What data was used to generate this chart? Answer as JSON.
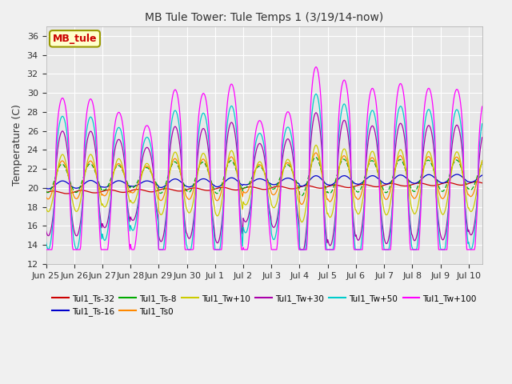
{
  "title": "MB Tule Tower: Tule Temps 1 (3/19/14-now)",
  "ylabel": "Temperature (C)",
  "yticks": [
    12,
    14,
    16,
    18,
    20,
    22,
    24,
    26,
    28,
    30,
    32,
    34,
    36
  ],
  "ylim": [
    12,
    37
  ],
  "xtick_labels": [
    "Jun 25",
    "Jun 26",
    "Jun 27",
    "Jun 28",
    "Jun 29",
    "Jun 30",
    "Jul 1",
    "Jul 2",
    "Jul 3",
    "Jul 4",
    "Jul 5",
    "Jul 6",
    "Jul 7",
    "Jul 8",
    "Jul 9",
    "Jul 10"
  ],
  "bg_color": "#e8e8e8",
  "fig_bg_color": "#f0f0f0",
  "series_colors": {
    "Tul1_Ts-32": "#cc0000",
    "Tul1_Ts-16": "#0000cc",
    "Tul1_Ts-8": "#00aa00",
    "Tul1_Ts0": "#ff8800",
    "Tul1_Tw+10": "#cccc00",
    "Tul1_Tw+30": "#aa00aa",
    "Tul1_Tw+50": "#00cccc",
    "Tul1_Tw+100": "#ff00ff"
  },
  "watermark": "MB_tule",
  "watermark_color": "#cc0000",
  "watermark_bg": "#ffffcc",
  "watermark_edge": "#999900"
}
